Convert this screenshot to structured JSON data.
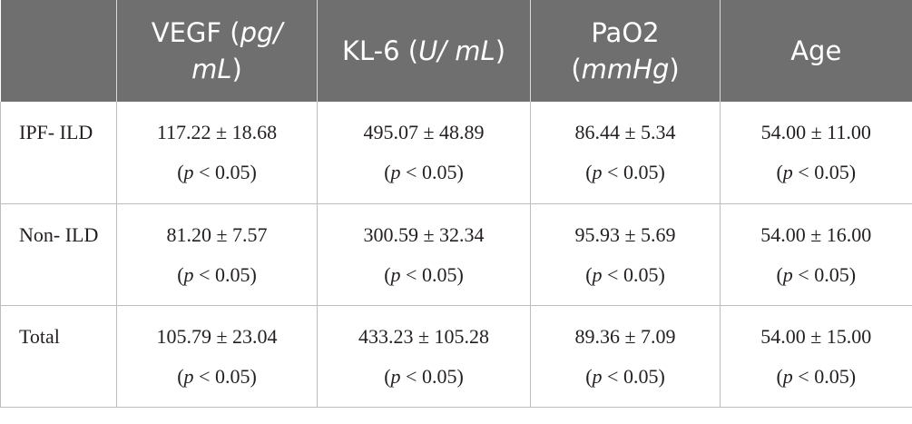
{
  "header": {
    "corner": "",
    "columns": [
      {
        "pre": "VEGF (",
        "ital": "pg/ mL",
        "post": ")"
      },
      {
        "pre": "KL-6 (",
        "ital": "U/ mL",
        "post": ")"
      },
      {
        "pre": "PaO2 (",
        "ital": "mmHg",
        "post": ")"
      },
      {
        "pre": "Age",
        "ital": "",
        "post": ""
      }
    ]
  },
  "rows": [
    {
      "label": "IPF- ILD",
      "cells": [
        {
          "value": "117.22 ± 18.68",
          "p_symbol": "p",
          "p_rest": " < 0.05)"
        },
        {
          "value": "495.07 ± 48.89",
          "p_symbol": "p",
          "p_rest": " < 0.05)"
        },
        {
          "value": "86.44 ± 5.34",
          "p_symbol": "p",
          "p_rest": " < 0.05)"
        },
        {
          "value": "54.00 ± 11.00",
          "p_symbol": "p",
          "p_rest": " < 0.05)"
        }
      ]
    },
    {
      "label": "Non- ILD",
      "cells": [
        {
          "value": "81.20 ± 7.57",
          "p_symbol": "p",
          "p_rest": " < 0.05)"
        },
        {
          "value": "300.59 ± 32.34",
          "p_symbol": "p",
          "p_rest": " < 0.05)"
        },
        {
          "value": "95.93 ± 5.69",
          "p_symbol": "p",
          "p_rest": " < 0.05)"
        },
        {
          "value": "54.00 ± 16.00",
          "p_symbol": "p",
          "p_rest": " < 0.05)"
        }
      ]
    },
    {
      "label": "Total",
      "cells": [
        {
          "value": "105.79 ± 23.04",
          "p_symbol": "p",
          "p_rest": " < 0.05)"
        },
        {
          "value": "433.23 ± 105.28",
          "p_symbol": "p",
          "p_rest": " < 0.05)"
        },
        {
          "value": "89.36 ± 7.09",
          "p_symbol": "p",
          "p_rest": " < 0.05)"
        },
        {
          "value": "54.00 ± 15.00",
          "p_symbol": "p",
          "p_rest": " < 0.05)"
        }
      ]
    }
  ],
  "p_open": "(",
  "colors": {
    "header_bg": "#6f6f6f",
    "header_text": "#ffffff",
    "body_text": "#231f20",
    "rule": "#bdbdbd"
  }
}
